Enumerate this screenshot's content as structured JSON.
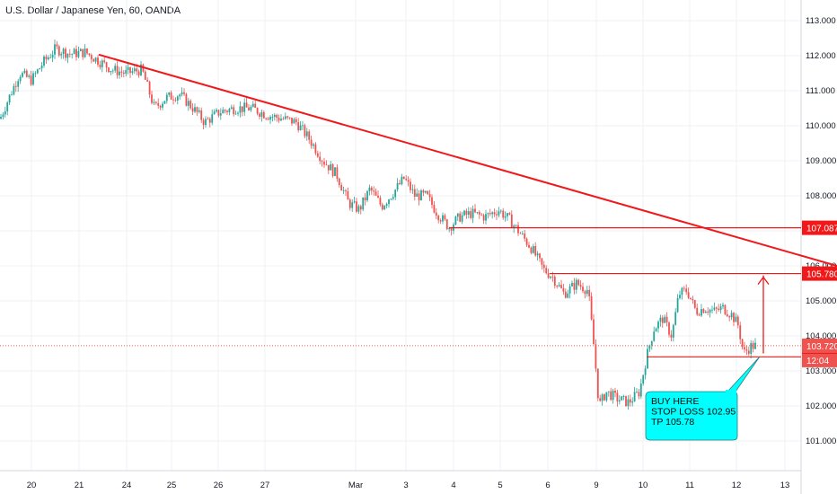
{
  "title": "U.S. Dollar / Japanese Yen, 60, OANDA",
  "chart_data": {
    "type": "candlestick",
    "ylim": [
      100.5,
      113.4
    ],
    "y_ticks": [
      "113.000",
      "112.000",
      "111.000",
      "110.000",
      "109.000",
      "108.000",
      "107.000",
      "106.000",
      "105.000",
      "104.000",
      "103.000",
      "102.000",
      "101.000"
    ],
    "x_ticks": [
      "20",
      "21",
      "24",
      "25",
      "26",
      "27",
      "Mar",
      "3",
      "4",
      "5",
      "6",
      "9",
      "10",
      "11",
      "12",
      "13"
    ],
    "grid": true,
    "price_path": [
      {
        "x": 0,
        "y": 110.2
      },
      {
        "x": 10,
        "y": 110.8
      },
      {
        "x": 22,
        "y": 111.5
      },
      {
        "x": 35,
        "y": 111.3
      },
      {
        "x": 48,
        "y": 111.8
      },
      {
        "x": 62,
        "y": 112.2
      },
      {
        "x": 78,
        "y": 112.05
      },
      {
        "x": 95,
        "y": 112.1
      },
      {
        "x": 110,
        "y": 111.85
      },
      {
        "x": 125,
        "y": 111.6
      },
      {
        "x": 140,
        "y": 111.5
      },
      {
        "x": 158,
        "y": 111.6
      },
      {
        "x": 172,
        "y": 110.5
      },
      {
        "x": 185,
        "y": 110.8
      },
      {
        "x": 200,
        "y": 110.9
      },
      {
        "x": 215,
        "y": 110.5
      },
      {
        "x": 228,
        "y": 110.1
      },
      {
        "x": 245,
        "y": 110.4
      },
      {
        "x": 262,
        "y": 110.5
      },
      {
        "x": 280,
        "y": 110.5
      },
      {
        "x": 298,
        "y": 110.3
      },
      {
        "x": 315,
        "y": 110.2
      },
      {
        "x": 330,
        "y": 110.1
      },
      {
        "x": 345,
        "y": 109.6
      },
      {
        "x": 360,
        "y": 109.0
      },
      {
        "x": 375,
        "y": 108.6
      },
      {
        "x": 388,
        "y": 107.8
      },
      {
        "x": 400,
        "y": 107.6
      },
      {
        "x": 412,
        "y": 108.2
      },
      {
        "x": 425,
        "y": 107.7
      },
      {
        "x": 438,
        "y": 108.1
      },
      {
        "x": 450,
        "y": 108.5
      },
      {
        "x": 462,
        "y": 108.0
      },
      {
        "x": 475,
        "y": 108.0
      },
      {
        "x": 487,
        "y": 107.5
      },
      {
        "x": 500,
        "y": 107.1
      },
      {
        "x": 512,
        "y": 107.4
      },
      {
        "x": 525,
        "y": 107.5
      },
      {
        "x": 540,
        "y": 107.4
      },
      {
        "x": 555,
        "y": 107.6
      },
      {
        "x": 568,
        "y": 107.3
      },
      {
        "x": 580,
        "y": 106.9
      },
      {
        "x": 592,
        "y": 106.5
      },
      {
        "x": 605,
        "y": 105.9
      },
      {
        "x": 615,
        "y": 105.7
      },
      {
        "x": 628,
        "y": 105.2
      },
      {
        "x": 642,
        "y": 105.5
      },
      {
        "x": 655,
        "y": 105.3
      },
      {
        "x": 662,
        "y": 103.5
      },
      {
        "x": 667,
        "y": 102.0
      },
      {
        "x": 675,
        "y": 102.4
      },
      {
        "x": 688,
        "y": 102.2
      },
      {
        "x": 700,
        "y": 102.1
      },
      {
        "x": 712,
        "y": 102.4
      },
      {
        "x": 720,
        "y": 103.4
      },
      {
        "x": 728,
        "y": 104.2
      },
      {
        "x": 738,
        "y": 104.5
      },
      {
        "x": 748,
        "y": 104.0
      },
      {
        "x": 756,
        "y": 105.2
      },
      {
        "x": 765,
        "y": 105.3
      },
      {
        "x": 775,
        "y": 104.7
      },
      {
        "x": 785,
        "y": 104.8
      },
      {
        "x": 795,
        "y": 104.7
      },
      {
        "x": 805,
        "y": 104.8
      },
      {
        "x": 815,
        "y": 104.6
      },
      {
        "x": 822,
        "y": 104.3
      },
      {
        "x": 828,
        "y": 103.5
      },
      {
        "x": 836,
        "y": 103.7
      },
      {
        "x": 843,
        "y": 103.72
      }
    ],
    "trendline": {
      "from": {
        "x": 110,
        "y": 112.03
      },
      "to": {
        "x": 932,
        "y": 106.0
      }
    },
    "horizontal_levels": [
      {
        "value": 107.087,
        "label": "107.087",
        "from_x": 500
      },
      {
        "value": 105.78,
        "label": "105.780",
        "from_x": 612
      },
      {
        "value": 103.402,
        "label": "103.402",
        "from_x": 720
      }
    ],
    "current_price": {
      "value": 103.72,
      "label": "103.720",
      "time_label": "12:04"
    },
    "target_arrow": {
      "x": 850,
      "from_value": 103.5,
      "to_value": 105.78
    },
    "annotation": {
      "lines": [
        "BUY HERE",
        "STOP LOSS 102.95",
        "TP 105.78"
      ]
    },
    "colors": {
      "up": "#26a69a",
      "down": "#ef5350",
      "line": "#f01818",
      "callout_bg": "#00ffff",
      "grid": "#eef0f3"
    }
  }
}
